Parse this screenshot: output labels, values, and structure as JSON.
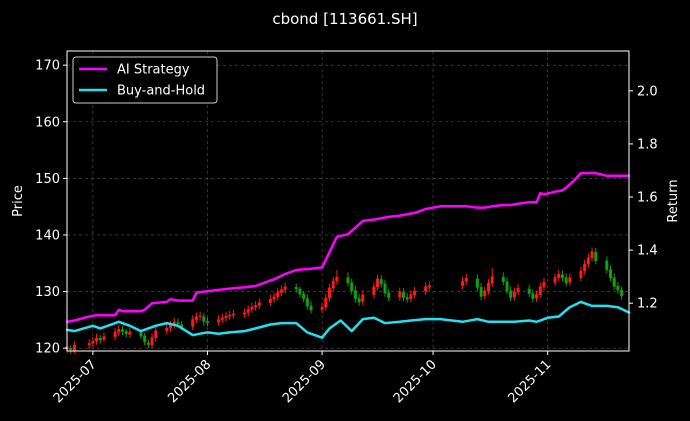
{
  "chart_data": {
    "type": "line",
    "title": "cbond [113661.SH]",
    "ylabel_left": "Price",
    "ylabel_right": "Return",
    "ylim_left": [
      119.5,
      172.5
    ],
    "ylim_right": [
      1.02,
      2.15
    ],
    "yticks_left": [
      120,
      130,
      140,
      150,
      160,
      170
    ],
    "yticks_right": [
      1.2,
      1.4,
      1.6,
      1.8,
      2.0
    ],
    "yticks_right_labels": [
      "1.2",
      "1.4",
      "1.6",
      "1.8",
      "2.0"
    ],
    "xlim": [
      "2025-06-24",
      "2025-11-23"
    ],
    "xticks": [
      "2025-07-01",
      "2025-08-01",
      "2025-09-01",
      "2025-10-01",
      "2025-11-01"
    ],
    "xtick_labels": [
      "2025-07",
      "2025-08",
      "2025-09",
      "2025-10",
      "2025-11"
    ],
    "grid": true,
    "legend_position": "top-left",
    "colors": {
      "background": "#000000",
      "ai_strategy": "#ff00ff",
      "buy_and_hold": "#22e0f0",
      "candle_up": "#ff1a1a",
      "candle_down": "#10a010",
      "grid": "#555555",
      "frame": "#ffffff"
    },
    "series": [
      {
        "name": "AI Strategy",
        "axis": "right",
        "x": [
          "2025-06-24",
          "2025-06-26",
          "2025-06-30",
          "2025-07-02",
          "2025-07-07",
          "2025-07-08",
          "2025-07-09",
          "2025-07-14",
          "2025-07-15",
          "2025-07-17",
          "2025-07-21",
          "2025-07-22",
          "2025-07-24",
          "2025-07-28",
          "2025-07-29",
          "2025-08-01",
          "2025-08-04",
          "2025-08-07",
          "2025-08-11",
          "2025-08-14",
          "2025-08-18",
          "2025-08-19",
          "2025-08-22",
          "2025-08-25",
          "2025-08-29",
          "2025-09-01",
          "2025-09-05",
          "2025-09-08",
          "2025-09-12",
          "2025-09-15",
          "2025-09-19",
          "2025-09-22",
          "2025-09-26",
          "2025-09-29",
          "2025-10-03",
          "2025-10-08",
          "2025-10-10",
          "2025-10-13",
          "2025-10-15",
          "2025-10-17",
          "2025-10-20",
          "2025-10-22",
          "2025-10-24",
          "2025-10-27",
          "2025-10-29",
          "2025-10-30",
          "2025-10-31",
          "2025-11-03",
          "2025-11-05",
          "2025-11-06",
          "2025-11-08",
          "2025-11-10",
          "2025-11-14",
          "2025-11-17",
          "2025-11-23"
        ],
        "values": [
          1.13,
          1.135,
          1.15,
          1.155,
          1.155,
          1.175,
          1.17,
          1.17,
          1.175,
          1.2,
          1.205,
          1.215,
          1.21,
          1.21,
          1.24,
          1.245,
          1.25,
          1.255,
          1.26,
          1.265,
          1.285,
          1.29,
          1.31,
          1.325,
          1.33,
          1.335,
          1.45,
          1.46,
          1.51,
          1.515,
          1.525,
          1.53,
          1.54,
          1.555,
          1.565,
          1.565,
          1.565,
          1.56,
          1.56,
          1.565,
          1.57,
          1.57,
          1.575,
          1.58,
          1.58,
          1.615,
          1.61,
          1.62,
          1.625,
          1.635,
          1.66,
          1.69,
          1.69,
          1.68,
          1.68
        ]
      },
      {
        "name": "Buy-and-Hold",
        "axis": "right",
        "x": [
          "2025-06-24",
          "2025-06-26",
          "2025-07-01",
          "2025-07-03",
          "2025-07-08",
          "2025-07-11",
          "2025-07-14",
          "2025-07-16",
          "2025-07-18",
          "2025-07-21",
          "2025-07-24",
          "2025-07-28",
          "2025-07-30",
          "2025-08-01",
          "2025-08-04",
          "2025-08-07",
          "2025-08-11",
          "2025-08-14",
          "2025-08-18",
          "2025-08-21",
          "2025-08-25",
          "2025-08-28",
          "2025-09-01",
          "2025-09-03",
          "2025-09-06",
          "2025-09-09",
          "2025-09-12",
          "2025-09-15",
          "2025-09-18",
          "2025-09-22",
          "2025-09-25",
          "2025-09-29",
          "2025-10-03",
          "2025-10-09",
          "2025-10-13",
          "2025-10-16",
          "2025-10-20",
          "2025-10-23",
          "2025-10-27",
          "2025-10-29",
          "2025-11-01",
          "2025-11-04",
          "2025-11-07",
          "2025-11-10",
          "2025-11-13",
          "2025-11-17",
          "2025-11-20",
          "2025-11-23"
        ],
        "values": [
          1.1,
          1.095,
          1.115,
          1.105,
          1.13,
          1.115,
          1.095,
          1.105,
          1.115,
          1.125,
          1.115,
          1.08,
          1.085,
          1.09,
          1.085,
          1.09,
          1.095,
          1.105,
          1.12,
          1.125,
          1.125,
          1.09,
          1.07,
          1.105,
          1.135,
          1.095,
          1.14,
          1.145,
          1.125,
          1.13,
          1.135,
          1.14,
          1.14,
          1.13,
          1.14,
          1.13,
          1.13,
          1.13,
          1.135,
          1.13,
          1.145,
          1.15,
          1.185,
          1.205,
          1.19,
          1.19,
          1.185,
          1.165
        ]
      }
    ],
    "candles": {
      "axis": "left",
      "x": [
        "2025-06-24",
        "2025-06-25",
        "2025-06-26",
        "2025-06-30",
        "2025-07-01",
        "2025-07-02",
        "2025-07-03",
        "2025-07-04",
        "2025-07-07",
        "2025-07-08",
        "2025-07-09",
        "2025-07-10",
        "2025-07-11",
        "2025-07-14",
        "2025-07-15",
        "2025-07-16",
        "2025-07-17",
        "2025-07-18",
        "2025-07-21",
        "2025-07-22",
        "2025-07-23",
        "2025-07-24",
        "2025-07-25",
        "2025-07-28",
        "2025-07-29",
        "2025-07-30",
        "2025-07-31",
        "2025-08-01",
        "2025-08-04",
        "2025-08-05",
        "2025-08-06",
        "2025-08-07",
        "2025-08-08",
        "2025-08-11",
        "2025-08-12",
        "2025-08-13",
        "2025-08-14",
        "2025-08-15",
        "2025-08-18",
        "2025-08-19",
        "2025-08-20",
        "2025-08-21",
        "2025-08-22",
        "2025-08-25",
        "2025-08-26",
        "2025-08-27",
        "2025-08-28",
        "2025-08-29",
        "2025-09-01",
        "2025-09-02",
        "2025-09-03",
        "2025-09-04",
        "2025-09-05",
        "2025-09-08",
        "2025-09-09",
        "2025-09-10",
        "2025-09-11",
        "2025-09-12",
        "2025-09-15",
        "2025-09-16",
        "2025-09-17",
        "2025-09-18",
        "2025-09-19",
        "2025-09-22",
        "2025-09-23",
        "2025-09-24",
        "2025-09-25",
        "2025-09-26",
        "2025-09-29",
        "2025-09-30",
        "2025-10-09",
        "2025-10-10",
        "2025-10-13",
        "2025-10-14",
        "2025-10-15",
        "2025-10-16",
        "2025-10-17",
        "2025-10-20",
        "2025-10-21",
        "2025-10-22",
        "2025-10-23",
        "2025-10-24",
        "2025-10-27",
        "2025-10-28",
        "2025-10-29",
        "2025-10-30",
        "2025-10-31",
        "2025-11-03",
        "2025-11-04",
        "2025-11-05",
        "2025-11-06",
        "2025-11-07",
        "2025-11-10",
        "2025-11-11",
        "2025-11-12",
        "2025-11-13",
        "2025-11-14",
        "2025-11-17",
        "2025-11-18",
        "2025-11-19",
        "2025-11-20",
        "2025-11-21"
      ],
      "open": [
        119.8,
        120.0,
        119.6,
        120.5,
        120.8,
        121.2,
        121.8,
        121.5,
        122.0,
        122.8,
        123.3,
        123.0,
        122.4,
        122.8,
        122.2,
        121.0,
        120.5,
        121.8,
        123.0,
        123.5,
        124.0,
        124.6,
        124.2,
        123.8,
        125.0,
        125.5,
        125.6,
        124.8,
        124.6,
        125.0,
        125.3,
        125.6,
        125.8,
        126.0,
        126.2,
        126.8,
        127.2,
        127.5,
        128.0,
        128.6,
        129.0,
        129.8,
        130.3,
        130.8,
        130.5,
        129.6,
        128.8,
        127.5,
        126.8,
        127.2,
        128.8,
        130.6,
        131.8,
        132.5,
        131.6,
        130.2,
        128.8,
        128.2,
        129.4,
        130.8,
        132.2,
        131.4,
        129.8,
        129.0,
        129.9,
        129.0,
        128.7,
        129.4,
        130.0,
        130.8,
        131.0,
        131.8,
        132.3,
        130.8,
        129.2,
        130.1,
        131.4,
        132.6,
        131.8,
        130.2,
        129.0,
        129.9,
        130.5,
        129.7,
        128.8,
        129.4,
        130.8,
        131.6,
        132.4,
        133.0,
        132.5,
        131.6,
        132.4,
        133.6,
        134.8,
        135.9,
        137.0,
        135.5,
        133.9,
        132.5,
        131.0,
        130.3
      ],
      "close": [
        120.3,
        119.7,
        120.6,
        120.9,
        121.3,
        121.8,
        121.4,
        122.1,
        122.9,
        123.4,
        122.9,
        122.5,
        122.9,
        122.1,
        121.1,
        120.6,
        121.9,
        123.1,
        123.6,
        124.1,
        124.7,
        124.3,
        123.7,
        125.1,
        125.6,
        125.7,
        124.7,
        124.5,
        125.1,
        125.4,
        125.7,
        125.9,
        126.1,
        126.3,
        126.9,
        127.3,
        127.6,
        128.1,
        128.7,
        129.1,
        129.9,
        130.4,
        130.9,
        130.4,
        129.5,
        128.7,
        127.4,
        126.7,
        127.3,
        128.9,
        130.7,
        131.9,
        132.6,
        131.5,
        130.1,
        128.7,
        128.1,
        129.5,
        130.9,
        132.3,
        131.3,
        129.7,
        128.9,
        130.0,
        128.9,
        128.6,
        129.5,
        130.1,
        130.9,
        131.1,
        131.9,
        132.4,
        130.7,
        129.1,
        130.2,
        131.5,
        132.7,
        131.7,
        130.1,
        128.9,
        130.0,
        130.6,
        129.6,
        128.7,
        129.5,
        130.9,
        131.7,
        132.5,
        133.1,
        132.4,
        131.5,
        132.5,
        133.7,
        134.9,
        136.0,
        137.1,
        135.4,
        133.8,
        132.4,
        130.9,
        130.2,
        129.2
      ],
      "high": [
        121.0,
        120.5,
        121.2,
        121.6,
        122.0,
        122.5,
        122.3,
        122.8,
        123.6,
        124.1,
        123.9,
        123.4,
        123.6,
        122.9,
        122.7,
        121.5,
        122.6,
        123.8,
        124.3,
        124.8,
        125.4,
        125.2,
        124.8,
        125.8,
        126.3,
        126.4,
        126.2,
        125.4,
        125.8,
        126.1,
        126.4,
        126.6,
        126.8,
        127.0,
        127.6,
        128.0,
        128.3,
        128.8,
        129.4,
        129.8,
        130.6,
        131.1,
        131.6,
        131.4,
        130.9,
        130.1,
        129.5,
        128.3,
        128.0,
        129.6,
        131.4,
        132.6,
        133.8,
        133.4,
        132.3,
        131.0,
        129.5,
        130.2,
        131.6,
        133.0,
        132.9,
        132.1,
        130.5,
        130.7,
        130.6,
        129.7,
        130.2,
        130.8,
        131.6,
        131.8,
        132.6,
        133.1,
        133.0,
        131.5,
        130.9,
        132.2,
        134.1,
        133.4,
        132.5,
        130.9,
        130.7,
        131.3,
        131.2,
        130.4,
        130.2,
        131.6,
        132.4,
        133.2,
        133.8,
        133.7,
        133.2,
        133.2,
        134.4,
        135.6,
        136.7,
        137.8,
        137.7,
        136.2,
        134.6,
        133.2,
        131.7,
        130.9
      ],
      "low": [
        119.2,
        119.0,
        119.1,
        119.8,
        120.1,
        120.6,
        120.8,
        121.0,
        121.4,
        122.1,
        122.3,
        121.9,
        121.8,
        121.6,
        120.5,
        120.0,
        120.0,
        121.1,
        122.4,
        122.9,
        123.4,
        123.7,
        123.2,
        123.2,
        124.4,
        124.9,
        124.0,
        123.9,
        124.0,
        124.4,
        124.7,
        125.0,
        125.2,
        125.4,
        125.6,
        126.2,
        126.6,
        126.9,
        127.4,
        128.0,
        128.4,
        129.2,
        129.7,
        129.8,
        128.9,
        128.1,
        126.8,
        126.1,
        126.2,
        126.6,
        128.2,
        130.0,
        131.2,
        130.9,
        129.5,
        128.0,
        127.5,
        127.6,
        128.8,
        130.2,
        130.7,
        129.1,
        128.3,
        128.4,
        128.3,
        128.0,
        128.1,
        128.8,
        129.4,
        130.2,
        130.4,
        131.2,
        130.1,
        128.5,
        128.6,
        129.5,
        130.8,
        131.1,
        129.5,
        128.3,
        128.4,
        129.3,
        129.0,
        128.1,
        128.2,
        128.8,
        130.2,
        131.0,
        131.8,
        131.8,
        130.9,
        131.0,
        131.8,
        133.0,
        134.2,
        135.3,
        134.8,
        133.2,
        131.8,
        130.3,
        129.6,
        128.6
      ]
    }
  }
}
